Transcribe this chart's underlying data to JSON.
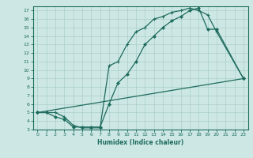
{
  "xlabel": "Humidex (Indice chaleur)",
  "bg_color": "#cde8e4",
  "grid_color": "#aaceca",
  "line_color": "#1e6b5e",
  "xlim": [
    -0.5,
    23.5
  ],
  "ylim": [
    3,
    17.5
  ],
  "xticks": [
    0,
    1,
    2,
    3,
    4,
    5,
    6,
    7,
    8,
    9,
    10,
    11,
    12,
    13,
    14,
    15,
    16,
    17,
    18,
    19,
    20,
    21,
    22,
    23
  ],
  "yticks": [
    3,
    4,
    5,
    6,
    7,
    8,
    9,
    10,
    11,
    12,
    13,
    14,
    15,
    16,
    17
  ],
  "line1_x": [
    0,
    1,
    2,
    3,
    4,
    5,
    6,
    7,
    8,
    9,
    10,
    11,
    12,
    13,
    14,
    15,
    16,
    17,
    18,
    19,
    20,
    23
  ],
  "line1_y": [
    5,
    5,
    5,
    4.5,
    3.5,
    3.2,
    3.2,
    3.2,
    10.5,
    11.0,
    13.0,
    14.5,
    15.0,
    16.0,
    16.3,
    16.8,
    17.0,
    17.3,
    17.0,
    16.5,
    14.5,
    9.0
  ],
  "line2_x": [
    0,
    1,
    2,
    3,
    4,
    5,
    6,
    7,
    8,
    9,
    10,
    11,
    12,
    13,
    14,
    15,
    16,
    17,
    18,
    19,
    20,
    23
  ],
  "line2_y": [
    5,
    5,
    4.5,
    4.2,
    3.3,
    3.3,
    3.3,
    3.3,
    6.0,
    8.5,
    9.5,
    11.0,
    13.0,
    14.0,
    15.0,
    15.8,
    16.3,
    17.0,
    17.3,
    14.8,
    14.8,
    9.0
  ],
  "line3_x": [
    0,
    23
  ],
  "line3_y": [
    5,
    9.0
  ]
}
